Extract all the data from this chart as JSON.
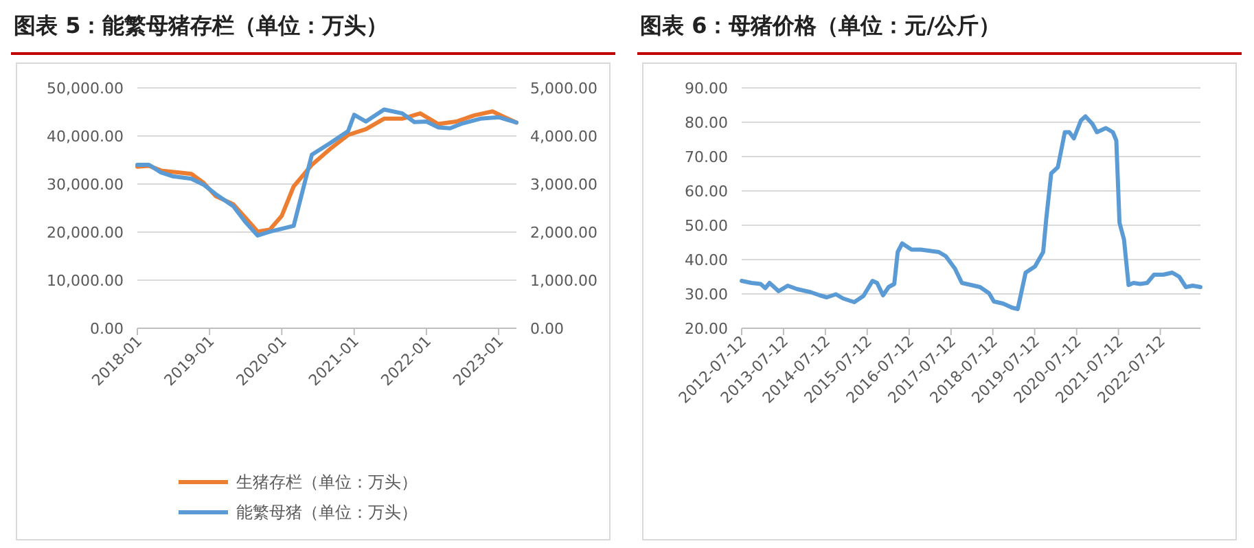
{
  "chart_data": [
    {
      "type": "line",
      "title": "图表 5：能繁母猪存栏（单位：万头）",
      "grid": "y",
      "legend": "bottom",
      "xlim": [
        "2018-01",
        "2023-04"
      ],
      "xticks": [
        {
          "value": "2018-01",
          "label": "2018-01"
        },
        {
          "value": "2019-01",
          "label": "2019-01"
        },
        {
          "value": "2020-01",
          "label": "2020-01"
        },
        {
          "value": "2021-01",
          "label": "2021-01"
        },
        {
          "value": "2022-01",
          "label": "2022-01"
        },
        {
          "value": "2023-01",
          "label": "2023-01"
        }
      ],
      "ylim": [
        0,
        50000
      ],
      "yticks": [
        {
          "value": 0,
          "label": "0.00"
        },
        {
          "value": 10000,
          "label": "10,000.00"
        },
        {
          "value": 20000,
          "label": "20,000.00"
        },
        {
          "value": 30000,
          "label": "30,000.00"
        },
        {
          "value": 40000,
          "label": "40,000.00"
        },
        {
          "value": 50000,
          "label": "50,000.00"
        }
      ],
      "y2lim": [
        0,
        5000
      ],
      "y2ticks": [
        {
          "value": 0,
          "label": "0.00"
        },
        {
          "value": 1000,
          "label": "1,000.00"
        },
        {
          "value": 2000,
          "label": "2,000.00"
        },
        {
          "value": 3000,
          "label": "3,000.00"
        },
        {
          "value": 4000,
          "label": "4,000.00"
        },
        {
          "value": 5000,
          "label": "5,000.00"
        }
      ],
      "series": [
        {
          "name": "生猪存栏（单位：万头）",
          "color": "#ed7d31",
          "x": [
            "2018-01",
            "2018-03",
            "2018-05",
            "2018-08",
            "2018-10",
            "2018-12",
            "2019-02",
            "2019-05",
            "2019-07",
            "2019-09",
            "2019-11",
            "2020-01",
            "2020-03",
            "2020-06",
            "2020-09",
            "2020-12",
            "2021-03",
            "2021-06",
            "2021-09",
            "2021-12",
            "2022-03",
            "2022-06",
            "2022-09",
            "2022-12",
            "2023-02",
            "2023-04"
          ],
          "values": [
            33600,
            33800,
            32800,
            32400,
            32100,
            30300,
            27500,
            25800,
            23000,
            20100,
            20500,
            23400,
            29500,
            34000,
            37300,
            40200,
            41400,
            43600,
            43600,
            44700,
            42500,
            43000,
            44300,
            45100,
            43900,
            42800
          ]
        },
        {
          "name": "能繁母猪（单位：万头）",
          "color": "#5b9bd5",
          "axis": "y2",
          "x": [
            "2018-01",
            "2018-03",
            "2018-05",
            "2018-07",
            "2018-10",
            "2018-12",
            "2019-02",
            "2019-05",
            "2019-07",
            "2019-09",
            "2019-11",
            "2020-01",
            "2020-03",
            "2020-06",
            "2020-09",
            "2020-12",
            "2021-01",
            "2021-03",
            "2021-06",
            "2021-09",
            "2021-11",
            "2022-01",
            "2022-03",
            "2022-05",
            "2022-07",
            "2022-10",
            "2023-01",
            "2023-04"
          ],
          "values": [
            3400,
            3400,
            3240,
            3160,
            3110,
            2990,
            2790,
            2540,
            2210,
            1930,
            2010,
            2070,
            2130,
            3610,
            3850,
            4100,
            4440,
            4300,
            4550,
            4470,
            4290,
            4300,
            4180,
            4160,
            4260,
            4360,
            4390,
            4280
          ]
        }
      ]
    },
    {
      "type": "line",
      "title": "图表 6：母猪价格（单位：元/公斤）",
      "grid": "y",
      "xlim": [
        "2012-07-12",
        "2023-06-27"
      ],
      "xticks": [
        {
          "value": "2012-07-12",
          "label": "2012-07-12"
        },
        {
          "value": "2013-07-12",
          "label": "2013-07-12"
        },
        {
          "value": "2014-07-12",
          "label": "2014-07-12"
        },
        {
          "value": "2015-07-12",
          "label": "2015-07-12"
        },
        {
          "value": "2016-07-12",
          "label": "2016-07-12"
        },
        {
          "value": "2017-07-12",
          "label": "2017-07-12"
        },
        {
          "value": "2018-07-12",
          "label": "2018-07-12"
        },
        {
          "value": "2019-07-12",
          "label": "2019-07-12"
        },
        {
          "value": "2020-07-12",
          "label": "2020-07-12"
        },
        {
          "value": "2021-07-12",
          "label": "2021-07-12"
        },
        {
          "value": "2022-07-12",
          "label": "2022-07-12"
        }
      ],
      "ylim": [
        20,
        90
      ],
      "yticks": [
        {
          "value": 20,
          "label": "20.00"
        },
        {
          "value": 30,
          "label": "30.00"
        },
        {
          "value": 40,
          "label": "40.00"
        },
        {
          "value": 50,
          "label": "50.00"
        },
        {
          "value": 60,
          "label": "60.00"
        },
        {
          "value": 70,
          "label": "70.00"
        },
        {
          "value": 80,
          "label": "80.00"
        },
        {
          "value": 90,
          "label": "90.00"
        }
      ],
      "series": [
        {
          "color": "#5b9bd5",
          "x": [
            "2012-07-12",
            "2012-10-05",
            "2012-12-24",
            "2013-02-03",
            "2013-03-12",
            "2013-05-30",
            "2013-08-18",
            "2013-11-08",
            "2014-03-06",
            "2014-05-24",
            "2014-07-24",
            "2014-10-12",
            "2014-12-12",
            "2015-03-21",
            "2015-06-09",
            "2015-08-27",
            "2015-10-06",
            "2015-11-27",
            "2016-01-15",
            "2016-03-04",
            "2016-04-03",
            "2016-05-12",
            "2016-08-02",
            "2016-10-21",
            "2017-03-27",
            "2017-05-27",
            "2017-08-15",
            "2017-10-15",
            "2018-01-03",
            "2018-03-22",
            "2018-06-09",
            "2018-07-21",
            "2018-10-08",
            "2018-12-27",
            "2019-02-14",
            "2019-03-16",
            "2019-04-24",
            "2019-07-15",
            "2019-09-24",
            "2019-10-21",
            "2019-12-03",
            "2020-01-30",
            "2020-03-31",
            "2020-05-09",
            "2020-06-18",
            "2020-08-18",
            "2020-09-27",
            "2020-11-27",
            "2021-01-05",
            "2021-03-24",
            "2021-05-24",
            "2021-06-23",
            "2021-07-21",
            "2021-08-29",
            "2021-10-08",
            "2021-11-20",
            "2022-01-17",
            "2022-03-19",
            "2022-05-18",
            "2022-08-06",
            "2022-10-24",
            "2022-12-24",
            "2023-02-20",
            "2023-04-21",
            "2023-06-27"
          ],
          "values": [
            33.8,
            33.2,
            32.9,
            31.7,
            33.2,
            30.8,
            32.4,
            31.4,
            30.5,
            29.6,
            29.0,
            29.9,
            28.7,
            27.6,
            29.4,
            33.8,
            33.2,
            29.6,
            32.0,
            32.9,
            42.2,
            44.7,
            42.9,
            42.9,
            42.2,
            41.0,
            37.4,
            33.2,
            32.6,
            32.0,
            30.2,
            27.8,
            27.2,
            26.0,
            25.6,
            30.2,
            36.2,
            38.0,
            42.2,
            51.9,
            65.1,
            66.9,
            77.1,
            77.1,
            75.3,
            80.5,
            81.7,
            79.5,
            77.1,
            78.3,
            77.1,
            74.7,
            50.7,
            45.9,
            32.6,
            33.2,
            32.9,
            33.2,
            35.6,
            35.6,
            36.2,
            35.0,
            32.0,
            32.4,
            32.0
          ]
        }
      ]
    }
  ]
}
